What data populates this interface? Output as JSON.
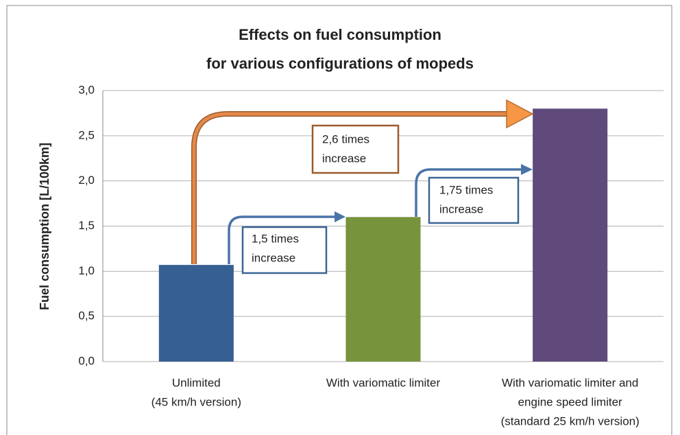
{
  "chart_data": {
    "type": "bar",
    "title": [
      "Effects on fuel consumption",
      "for various configurations of mopeds"
    ],
    "y_label": "Fuel consumption  [L/100km]",
    "categories": [
      [
        "Unlimited",
        "(45 km/h version)"
      ],
      [
        "With variomatic limiter"
      ],
      [
        "With variomatic limiter and",
        "engine speed limiter",
        "(standard 25 km/h version)"
      ]
    ],
    "values": [
      1.07,
      1.6,
      2.8
    ],
    "colors": [
      "#376092",
      "#77933c",
      "#604a7b"
    ],
    "ylim": [
      0,
      3
    ],
    "yticks": [
      {
        "value": 0,
        "label": "0,0"
      },
      {
        "value": 0.5,
        "label": "0,5"
      },
      {
        "value": 1,
        "label": "1,0"
      },
      {
        "value": 1.5,
        "label": "1,5"
      },
      {
        "value": 2,
        "label": "2,0"
      },
      {
        "value": 2.5,
        "label": "2,5"
      },
      {
        "value": 3,
        "label": "3,0"
      }
    ],
    "grid": true,
    "annotations": [
      [
        "2,6 times",
        "increase"
      ],
      [
        "1,5 times",
        "increase"
      ],
      [
        "1,75 times",
        "increase"
      ]
    ]
  }
}
